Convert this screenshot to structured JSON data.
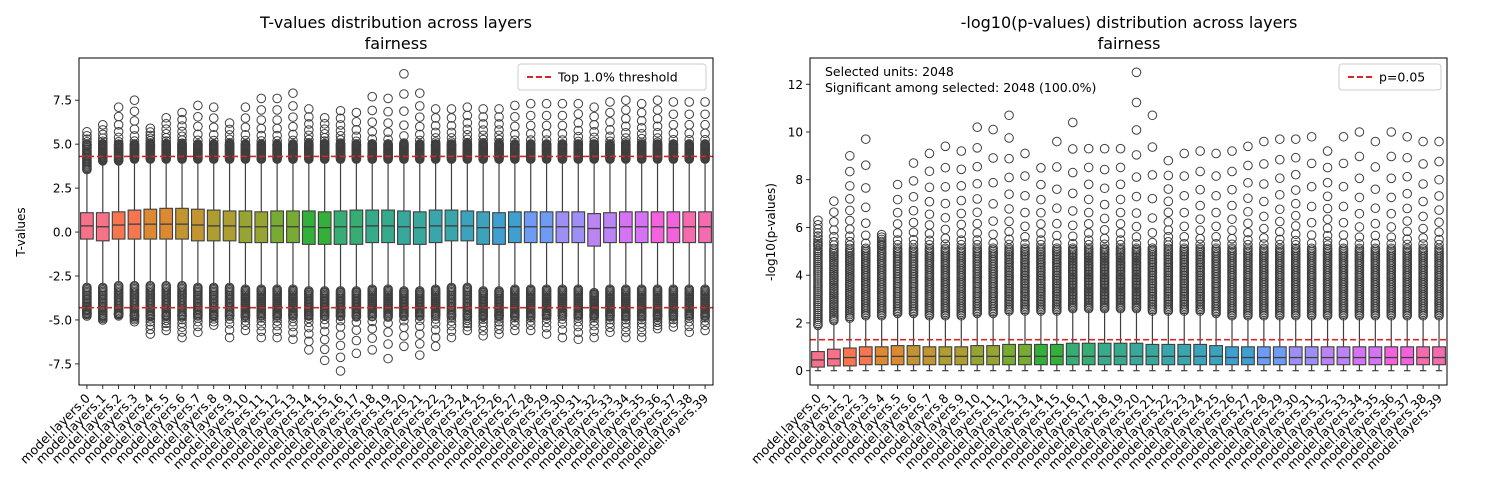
{
  "figure": {
    "background": "#ffffff"
  },
  "chart_data": [
    {
      "type": "box",
      "title": "T-values distribution across layers",
      "subtitle": "fairness",
      "ylabel": "T-values",
      "xlabel": "",
      "ylim": [
        -8.7,
        9.9
      ],
      "yticks": [
        -7.5,
        -5.0,
        -2.5,
        0.0,
        2.5,
        5.0,
        7.5
      ],
      "ytick_labels": [
        "-7.5",
        "-5.0",
        "-2.5",
        "0.0",
        "2.5",
        "5.0",
        "7.5"
      ],
      "grid": false,
      "legend": {
        "position": "upper-right",
        "entries": [
          {
            "label": "Top 1.0% threshold",
            "color": "#d62728",
            "style": "dashed"
          }
        ]
      },
      "hlines": [
        {
          "value": 4.3,
          "color": "#d62728",
          "style": "dashed"
        },
        {
          "value": -4.3,
          "color": "#d62728",
          "style": "dashed"
        }
      ],
      "categories": [
        "model.layers.0",
        "model.layers.1",
        "model.layers.2",
        "model.layers.3",
        "model.layers.4",
        "model.layers.5",
        "model.layers.6",
        "model.layers.7",
        "model.layers.8",
        "model.layers.9",
        "model.layers.10",
        "model.layers.11",
        "model.layers.12",
        "model.layers.13",
        "model.layers.14",
        "model.layers.15",
        "model.layers.16",
        "model.layers.17",
        "model.layers.18",
        "model.layers.19",
        "model.layers.20",
        "model.layers.21",
        "model.layers.22",
        "model.layers.23",
        "model.layers.24",
        "model.layers.25",
        "model.layers.26",
        "model.layers.27",
        "model.layers.28",
        "model.layers.29",
        "model.layers.30",
        "model.layers.31",
        "model.layers.32",
        "model.layers.33",
        "model.layers.34",
        "model.layers.35",
        "model.layers.36",
        "model.layers.37",
        "model.layers.38",
        "model.layers.39"
      ],
      "boxes": {
        "q1": [
          -0.4,
          -0.5,
          -0.4,
          -0.4,
          -0.4,
          -0.4,
          -0.4,
          -0.5,
          -0.5,
          -0.5,
          -0.6,
          -0.6,
          -0.6,
          -0.6,
          -0.7,
          -0.7,
          -0.7,
          -0.7,
          -0.6,
          -0.6,
          -0.7,
          -0.7,
          -0.6,
          -0.5,
          -0.5,
          -0.7,
          -0.7,
          -0.6,
          -0.6,
          -0.6,
          -0.6,
          -0.6,
          -0.8,
          -0.6,
          -0.6,
          -0.6,
          -0.6,
          -0.6,
          -0.6,
          -0.6
        ],
        "median": [
          0.35,
          0.3,
          0.4,
          0.45,
          0.45,
          0.45,
          0.45,
          0.4,
          0.35,
          0.35,
          0.3,
          0.3,
          0.35,
          0.3,
          0.3,
          0.25,
          0.3,
          0.3,
          0.35,
          0.35,
          0.3,
          0.25,
          0.35,
          0.35,
          0.35,
          0.25,
          0.25,
          0.3,
          0.3,
          0.3,
          0.3,
          0.3,
          0.2,
          0.25,
          0.3,
          0.3,
          0.3,
          0.25,
          0.3,
          0.3
        ],
        "q3": [
          1.1,
          1.1,
          1.15,
          1.25,
          1.3,
          1.35,
          1.35,
          1.3,
          1.25,
          1.2,
          1.2,
          1.15,
          1.2,
          1.2,
          1.2,
          1.15,
          1.2,
          1.25,
          1.25,
          1.25,
          1.2,
          1.15,
          1.25,
          1.25,
          1.2,
          1.15,
          1.1,
          1.15,
          1.15,
          1.15,
          1.15,
          1.15,
          1.05,
          1.1,
          1.15,
          1.15,
          1.15,
          1.15,
          1.15,
          1.15
        ],
        "whisker_low": [
          -3.0,
          -3.0,
          -2.9,
          -2.9,
          -2.9,
          -2.9,
          -2.9,
          -3.0,
          -3.0,
          -3.0,
          -3.1,
          -3.1,
          -3.1,
          -3.1,
          -3.2,
          -3.2,
          -3.2,
          -3.2,
          -3.1,
          -3.1,
          -3.2,
          -3.2,
          -3.1,
          -3.0,
          -3.0,
          -3.2,
          -3.2,
          -3.1,
          -3.1,
          -3.1,
          -3.1,
          -3.1,
          -3.3,
          -3.1,
          -3.1,
          -3.1,
          -3.1,
          -3.1,
          -3.1,
          -3.1
        ],
        "whisker_high": [
          3.4,
          3.9,
          3.9,
          4.0,
          4.0,
          4.0,
          4.0,
          4.0,
          4.0,
          4.0,
          4.0,
          4.0,
          4.0,
          4.0,
          4.0,
          4.0,
          4.0,
          4.0,
          4.0,
          4.0,
          4.0,
          4.0,
          4.0,
          4.0,
          4.0,
          4.0,
          4.0,
          4.0,
          4.0,
          4.0,
          4.0,
          4.0,
          4.0,
          4.0,
          4.0,
          4.0,
          4.0,
          4.0,
          4.0,
          4.0
        ],
        "flier_max": [
          5.7,
          6.1,
          7.1,
          7.5,
          5.9,
          6.5,
          6.8,
          7.2,
          7.1,
          6.2,
          7.1,
          7.6,
          7.6,
          7.9,
          7.0,
          6.5,
          6.9,
          6.8,
          7.7,
          7.6,
          9.0,
          7.9,
          7.0,
          7.0,
          7.1,
          7.0,
          7.0,
          7.2,
          7.3,
          7.3,
          7.3,
          7.3,
          7.1,
          7.4,
          7.5,
          7.3,
          7.5,
          7.4,
          7.4,
          7.4
        ],
        "flier_min": [
          -4.3,
          -5.0,
          -4.6,
          -5.1,
          -5.8,
          -5.6,
          -6.0,
          -5.7,
          -5.3,
          -6.0,
          -5.6,
          -6.0,
          -6.0,
          -6.1,
          -6.7,
          -7.3,
          -7.9,
          -6.9,
          -6.7,
          -7.2,
          -6.5,
          -7.0,
          -6.5,
          -6.0,
          -5.6,
          -5.9,
          -5.8,
          -5.6,
          -5.6,
          -5.8,
          -6.0,
          -6.1,
          -6.0,
          -5.7,
          -6.0,
          -6.0,
          -5.5,
          -5.4,
          -5.7,
          -5.6
        ]
      }
    },
    {
      "type": "box",
      "title": "-log10(p-values) distribution across layers",
      "subtitle": "fairness",
      "ylabel": "-log10(p-values)",
      "xlabel": "",
      "ylim": [
        -0.6,
        13.1
      ],
      "yticks": [
        0,
        2,
        4,
        6,
        8,
        10,
        12
      ],
      "ytick_labels": [
        "0",
        "2",
        "4",
        "6",
        "8",
        "10",
        "12"
      ],
      "grid": false,
      "legend": {
        "position": "upper-right",
        "entries": [
          {
            "label": "p=0.05",
            "color": "#d62728",
            "style": "dashed"
          }
        ]
      },
      "hlines": [
        {
          "value": 1.3,
          "color": "#d62728",
          "style": "dashed"
        }
      ],
      "annotations": [
        "Selected units: 2048",
        "Significant among selected: 2048 (100.0%)"
      ],
      "categories": [
        "model.layers.0",
        "model.layers.1",
        "model.layers.2",
        "model.layers.3",
        "model.layers.4",
        "model.layers.5",
        "model.layers.6",
        "model.layers.7",
        "model.layers.8",
        "model.layers.9",
        "model.layers.10",
        "model.layers.11",
        "model.layers.12",
        "model.layers.13",
        "model.layers.14",
        "model.layers.15",
        "model.layers.16",
        "model.layers.17",
        "model.layers.18",
        "model.layers.19",
        "model.layers.20",
        "model.layers.21",
        "model.layers.22",
        "model.layers.23",
        "model.layers.24",
        "model.layers.25",
        "model.layers.26",
        "model.layers.27",
        "model.layers.28",
        "model.layers.29",
        "model.layers.30",
        "model.layers.31",
        "model.layers.32",
        "model.layers.33",
        "model.layers.34",
        "model.layers.35",
        "model.layers.36",
        "model.layers.37",
        "model.layers.38",
        "model.layers.39"
      ],
      "boxes": {
        "q1": [
          0.15,
          0.2,
          0.2,
          0.25,
          0.25,
          0.25,
          0.25,
          0.25,
          0.25,
          0.25,
          0.25,
          0.25,
          0.25,
          0.25,
          0.25,
          0.25,
          0.25,
          0.25,
          0.25,
          0.25,
          0.25,
          0.25,
          0.25,
          0.25,
          0.25,
          0.25,
          0.25,
          0.25,
          0.25,
          0.25,
          0.25,
          0.25,
          0.25,
          0.25,
          0.25,
          0.25,
          0.25,
          0.25,
          0.25,
          0.25
        ],
        "median": [
          0.45,
          0.5,
          0.55,
          0.6,
          0.6,
          0.6,
          0.6,
          0.6,
          0.6,
          0.6,
          0.6,
          0.6,
          0.6,
          0.6,
          0.6,
          0.6,
          0.6,
          0.6,
          0.6,
          0.6,
          0.6,
          0.6,
          0.6,
          0.6,
          0.6,
          0.6,
          0.55,
          0.55,
          0.55,
          0.55,
          0.55,
          0.55,
          0.55,
          0.55,
          0.55,
          0.55,
          0.55,
          0.55,
          0.55,
          0.55
        ],
        "q3": [
          0.8,
          0.9,
          0.95,
          1.0,
          1.0,
          1.05,
          1.05,
          1.0,
          1.0,
          1.0,
          1.05,
          1.05,
          1.1,
          1.1,
          1.1,
          1.1,
          1.15,
          1.15,
          1.15,
          1.15,
          1.15,
          1.1,
          1.1,
          1.1,
          1.1,
          1.05,
          1.0,
          1.0,
          1.0,
          1.0,
          1.0,
          1.0,
          1.0,
          1.0,
          1.0,
          1.0,
          1.0,
          1.0,
          1.0,
          1.0
        ],
        "whisker_low": [
          0,
          0,
          0,
          0,
          0,
          0,
          0,
          0,
          0,
          0,
          0,
          0,
          0,
          0,
          0,
          0,
          0,
          0,
          0,
          0,
          0,
          0,
          0,
          0,
          0,
          0,
          0,
          0,
          0,
          0,
          0,
          0,
          0,
          0,
          0,
          0,
          0,
          0,
          0,
          0
        ],
        "whisker_high": [
          1.8,
          2.0,
          2.1,
          2.2,
          2.2,
          2.3,
          2.3,
          2.2,
          2.2,
          2.2,
          2.3,
          2.3,
          2.4,
          2.4,
          2.4,
          2.4,
          2.5,
          2.5,
          2.5,
          2.5,
          2.5,
          2.4,
          2.4,
          2.4,
          2.4,
          2.3,
          2.2,
          2.2,
          2.2,
          2.2,
          2.2,
          2.2,
          2.2,
          2.2,
          2.2,
          2.2,
          2.2,
          2.2,
          2.2,
          2.2
        ],
        "flier_max": [
          6.3,
          7.1,
          9.0,
          9.7,
          5.7,
          7.8,
          8.7,
          9.1,
          9.4,
          9.2,
          10.2,
          10.1,
          10.7,
          9.1,
          8.5,
          9.6,
          10.4,
          9.3,
          9.3,
          9.3,
          12.5,
          10.7,
          8.8,
          9.1,
          9.2,
          9.1,
          9.2,
          9.4,
          9.6,
          9.7,
          9.7,
          9.8,
          9.2,
          9.8,
          10.0,
          9.6,
          10.0,
          9.8,
          9.6,
          9.6
        ],
        "flier_min": [
          2.5,
          3.0,
          3.0,
          3.0,
          3.2,
          3.2,
          3.2,
          3.2,
          3.2,
          3.2,
          3.2,
          3.2,
          3.2,
          3.2,
          3.2,
          3.2,
          3.2,
          3.2,
          3.2,
          3.2,
          3.2,
          3.2,
          3.2,
          3.2,
          3.2,
          3.2,
          3.2,
          3.2,
          3.2,
          3.2,
          3.2,
          3.2,
          3.2,
          3.2,
          3.2,
          3.2,
          3.2,
          3.2,
          3.2,
          3.2
        ]
      }
    }
  ],
  "palette": [
    "#f77189",
    "#f7754f",
    "#dc8932",
    "#c39532",
    "#ae9d31",
    "#97a431",
    "#77ab31",
    "#33b039",
    "#36ad73",
    "#37aa8c",
    "#38a89d",
    "#39a6ab",
    "#3ba3bc",
    "#3da0d0",
    "#6e9bf4",
    "#9e8ff7",
    "#bb83f4",
    "#d673f4",
    "#f461dd",
    "#f66bad"
  ]
}
